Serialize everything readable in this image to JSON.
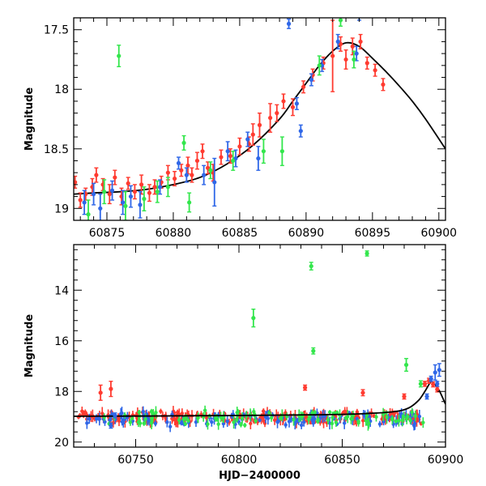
{
  "chart_data": [
    {
      "type": "scatter",
      "xlabel": "",
      "ylabel": "Magnitude",
      "xlim": [
        60872.5,
        60900.5
      ],
      "ylim": [
        19.1,
        17.4
      ],
      "y_inverted": true,
      "xticks": [
        60875,
        60880,
        60885,
        60890,
        60895,
        60900
      ],
      "xtick_labels": [
        "60875",
        "60880",
        "60885",
        "60890",
        "60895",
        "60900"
      ],
      "yticks": [
        17.5,
        18,
        18.5,
        19
      ],
      "ytick_labels": [
        "17.5",
        "18",
        "18.5",
        "19"
      ],
      "grid": false,
      "model_curve": {
        "color": "#000000",
        "points": [
          [
            60872.5,
            18.88
          ],
          [
            60874,
            18.87
          ],
          [
            60876,
            18.86
          ],
          [
            60878,
            18.84
          ],
          [
            60880,
            18.8
          ],
          [
            60882,
            18.74
          ],
          [
            60884,
            18.63
          ],
          [
            60886,
            18.47
          ],
          [
            60888,
            18.25
          ],
          [
            60889,
            18.1
          ],
          [
            60890,
            17.95
          ],
          [
            60891,
            17.8
          ],
          [
            60892,
            17.68
          ],
          [
            60893,
            17.61
          ],
          [
            60894,
            17.64
          ],
          [
            60895,
            17.74
          ],
          [
            60896,
            17.85
          ],
          [
            60897,
            17.97
          ],
          [
            60898,
            18.1
          ],
          [
            60899,
            18.25
          ],
          [
            60900.5,
            18.5
          ]
        ]
      },
      "series": [
        {
          "color": "#ff3b30",
          "points": [
            [
              60872.6,
              18.78,
              0.05
            ],
            [
              60873.0,
              18.93,
              0.06
            ],
            [
              60873.4,
              18.88,
              0.05
            ],
            [
              60873.9,
              18.82,
              0.07
            ],
            [
              60874.2,
              18.72,
              0.06
            ],
            [
              60874.7,
              18.8,
              0.05
            ],
            [
              60875.2,
              18.88,
              0.08
            ],
            [
              60875.6,
              18.74,
              0.06
            ],
            [
              60876.1,
              18.9,
              0.07
            ],
            [
              60876.6,
              18.79,
              0.05
            ],
            [
              60877.1,
              18.86,
              0.06
            ],
            [
              60877.6,
              18.8,
              0.08
            ],
            [
              60878.2,
              18.87,
              0.07
            ],
            [
              60878.6,
              18.82,
              0.06
            ],
            [
              60879.1,
              18.78,
              0.05
            ],
            [
              60879.6,
              18.7,
              0.06
            ],
            [
              60880.1,
              18.75,
              0.06
            ],
            [
              60880.6,
              18.68,
              0.05
            ],
            [
              60881.1,
              18.64,
              0.07
            ],
            [
              60881.4,
              18.72,
              0.06
            ],
            [
              60881.8,
              18.6,
              0.07
            ],
            [
              60882.2,
              18.52,
              0.06
            ],
            [
              60882.6,
              18.66,
              0.05
            ],
            [
              60883.0,
              18.7,
              0.07
            ],
            [
              60883.6,
              18.57,
              0.06
            ],
            [
              60884.3,
              18.56,
              0.06
            ],
            [
              60885.0,
              18.48,
              0.07
            ],
            [
              60885.7,
              18.46,
              0.06
            ],
            [
              60886.0,
              18.38,
              0.09
            ],
            [
              60886.5,
              18.3,
              0.1
            ],
            [
              60887.3,
              18.24,
              0.12
            ],
            [
              60887.8,
              18.2,
              0.07
            ],
            [
              60888.3,
              18.1,
              0.06
            ],
            [
              60889.0,
              18.15,
              0.07
            ],
            [
              60889.8,
              17.98,
              0.05
            ],
            [
              60890.5,
              17.88,
              0.05
            ],
            [
              60891.3,
              17.78,
              0.05
            ],
            [
              60892.0,
              17.72,
              0.3
            ],
            [
              60892.6,
              17.62,
              0.06
            ],
            [
              60893.0,
              17.75,
              0.08
            ],
            [
              60893.5,
              17.64,
              0.07
            ],
            [
              60894.1,
              17.6,
              0.06
            ],
            [
              60894.6,
              17.78,
              0.05
            ],
            [
              60895.2,
              17.84,
              0.05
            ],
            [
              60895.8,
              17.96,
              0.05
            ]
          ]
        },
        {
          "color": "#2f67e8",
          "points": [
            [
              60873.3,
              18.95,
              0.1
            ],
            [
              60874.0,
              18.88,
              0.09
            ],
            [
              60874.5,
              19.0,
              0.12
            ],
            [
              60875.4,
              18.85,
              0.08
            ],
            [
              60876.2,
              18.95,
              0.1
            ],
            [
              60876.8,
              18.9,
              0.09
            ],
            [
              60877.5,
              18.97,
              0.11
            ],
            [
              60879.0,
              18.82,
              0.06
            ],
            [
              60880.4,
              18.62,
              0.05
            ],
            [
              60881.0,
              18.72,
              0.06
            ],
            [
              60882.3,
              18.72,
              0.08
            ],
            [
              60883.1,
              18.78,
              0.2
            ],
            [
              60884.1,
              18.52,
              0.08
            ],
            [
              60884.7,
              18.58,
              0.07
            ],
            [
              60885.6,
              18.42,
              0.06
            ],
            [
              60886.4,
              18.58,
              0.1
            ],
            [
              60888.7,
              17.45,
              0.04
            ],
            [
              60889.3,
              18.12,
              0.05
            ],
            [
              60889.6,
              18.35,
              0.05
            ],
            [
              60890.4,
              17.92,
              0.05
            ],
            [
              60891.2,
              17.8,
              0.05
            ],
            [
              60892.4,
              17.6,
              0.06
            ],
            [
              60894.0,
              17.38,
              0.04
            ],
            [
              60893.8,
              17.7,
              0.06
            ]
          ]
        },
        {
          "color": "#33e64c",
          "points": [
            [
              60873.6,
              19.05,
              0.12
            ],
            [
              60874.8,
              18.86,
              0.1
            ],
            [
              60875.9,
              17.72,
              0.09
            ],
            [
              60876.4,
              18.98,
              0.12
            ],
            [
              60877.8,
              18.92,
              0.1
            ],
            [
              60878.8,
              18.86,
              0.09
            ],
            [
              60879.6,
              18.82,
              0.08
            ],
            [
              60880.8,
              18.45,
              0.06
            ],
            [
              60881.2,
              18.95,
              0.08
            ],
            [
              60882.8,
              18.68,
              0.07
            ],
            [
              60884.5,
              18.6,
              0.08
            ],
            [
              60886.8,
              18.52,
              0.1
            ],
            [
              60888.2,
              18.52,
              0.12
            ],
            [
              60891.0,
              17.8,
              0.08
            ],
            [
              60892.6,
              17.42,
              0.05
            ],
            [
              60893.6,
              17.75,
              0.07
            ]
          ]
        }
      ]
    },
    {
      "type": "scatter",
      "xlabel": "HJD−2400000",
      "ylabel": "Magnitude",
      "xlim": [
        60720,
        60900
      ],
      "ylim": [
        20.2,
        12.2
      ],
      "y_inverted": true,
      "xticks": [
        60750,
        60800,
        60850,
        60900
      ],
      "xtick_labels": [
        "60750",
        "60800",
        "60850",
        "60900"
      ],
      "yticks": [
        14,
        16,
        18,
        20
      ],
      "ytick_labels": [
        "14",
        "16",
        "18",
        "20"
      ],
      "grid": false,
      "model_curve": {
        "color": "#000000",
        "points": [
          [
            60720,
            18.98
          ],
          [
            60760,
            18.97
          ],
          [
            60800,
            18.95
          ],
          [
            60840,
            18.92
          ],
          [
            60860,
            18.88
          ],
          [
            60875,
            18.8
          ],
          [
            60882,
            18.66
          ],
          [
            60887,
            18.35
          ],
          [
            60890,
            18.0
          ],
          [
            60892.5,
            17.66
          ],
          [
            60893.5,
            17.62
          ],
          [
            60895,
            17.74
          ],
          [
            60897,
            17.97
          ],
          [
            60900,
            18.5
          ]
        ]
      },
      "bands": [
        {
          "color": "#ff3b30",
          "center": 19.02,
          "spread": 0.28,
          "count": 220,
          "x_range": [
            60722,
            60890
          ]
        },
        {
          "color": "#2f67e8",
          "center": 19.1,
          "spread": 0.32,
          "count": 120,
          "x_range": [
            60725,
            60890
          ]
        },
        {
          "color": "#33e64c",
          "center": 19.05,
          "spread": 0.35,
          "count": 100,
          "x_range": [
            60730,
            60890
          ]
        }
      ],
      "series": [
        {
          "color": "#33e64c",
          "points": [
            [
              60807,
              15.1,
              0.35
            ],
            [
              60835,
              13.05,
              0.15
            ],
            [
              60836,
              16.4,
              0.12
            ],
            [
              60862,
              12.55,
              0.1
            ],
            [
              60881,
              16.95,
              0.25
            ],
            [
              60888,
              17.7,
              0.12
            ]
          ]
        },
        {
          "color": "#ff3b30",
          "points": [
            [
              60733,
              18.05,
              0.3
            ],
            [
              60738,
              17.9,
              0.3
            ],
            [
              60832,
              17.85,
              0.1
            ],
            [
              60860,
              18.05,
              0.12
            ],
            [
              60880,
              18.2,
              0.1
            ],
            [
              60890,
              17.7,
              0.1
            ],
            [
              60892,
              17.58,
              0.1
            ],
            [
              60894,
              17.72,
              0.1
            ],
            [
              60896,
              17.92,
              0.1
            ]
          ]
        },
        {
          "color": "#2f67e8",
          "points": [
            [
              60738,
              19.35,
              0.1
            ],
            [
              60740,
              18.95,
              0.1
            ],
            [
              60893,
              17.5,
              0.1
            ],
            [
              60895,
              17.25,
              0.3
            ],
            [
              60897,
              17.15,
              0.25
            ],
            [
              60896,
              17.7,
              0.1
            ],
            [
              60891,
              18.2,
              0.1
            ]
          ]
        }
      ]
    }
  ]
}
